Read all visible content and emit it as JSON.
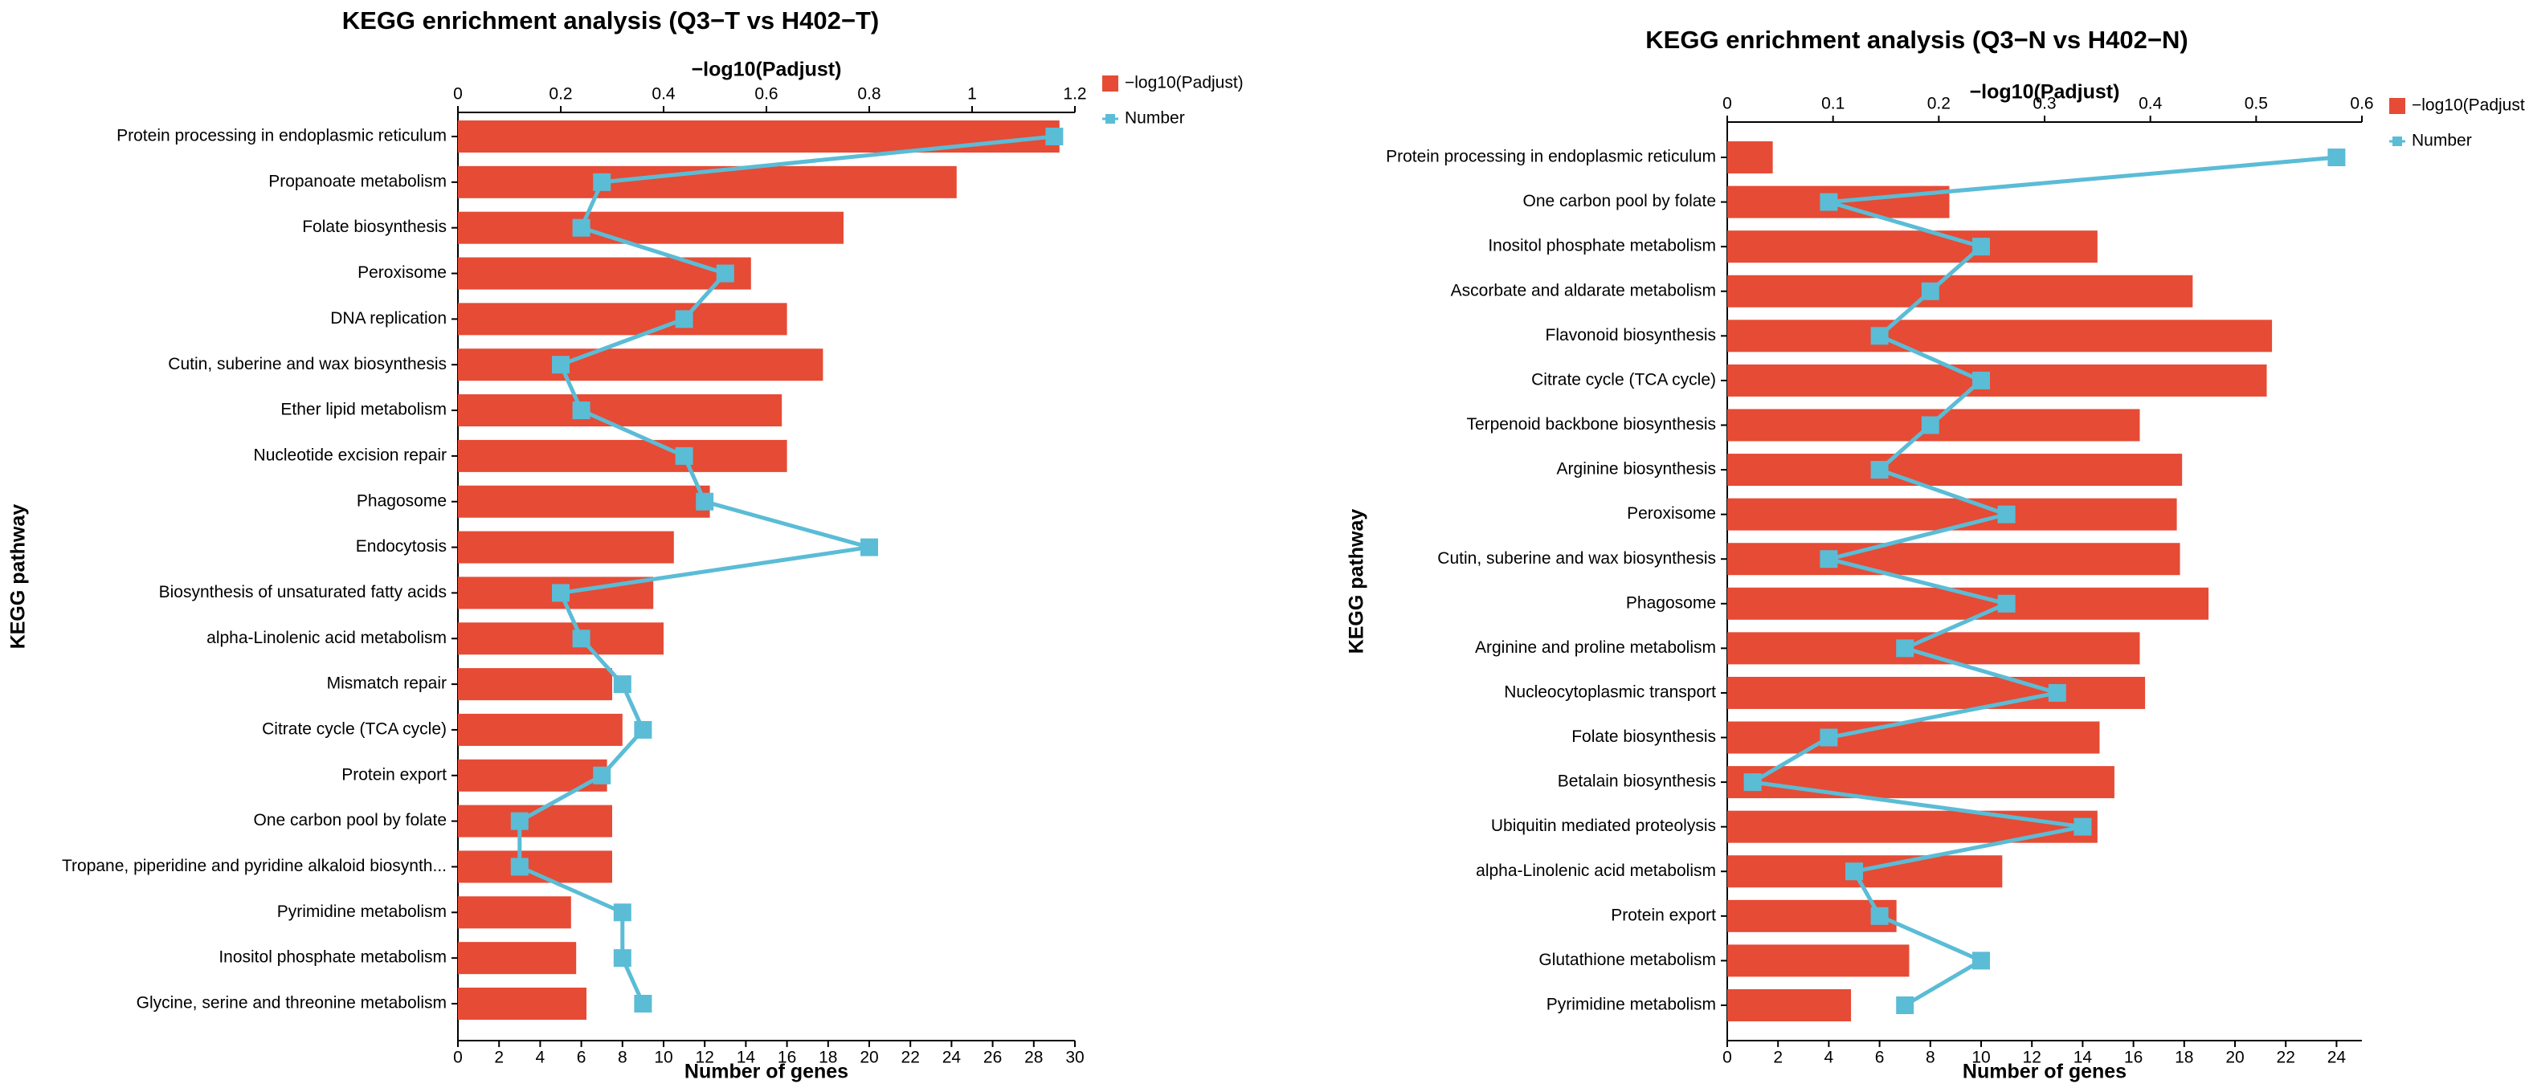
{
  "chart_data": [
    {
      "type": "bar-line",
      "title": "KEGG enrichment analysis (Q3−T vs H402−T)",
      "y_label": "KEGG pathway",
      "x_label": "Number of genes",
      "x2_label": "−log10(Padjust)",
      "categories": [
        "Protein processing in endoplasmic reticulum",
        "Propanoate metabolism",
        "Folate biosynthesis",
        "Peroxisome",
        "DNA replication",
        "Cutin, suberine and wax biosynthesis",
        "Ether lipid metabolism",
        "Nucleotide excision repair",
        "Phagosome",
        "Endocytosis",
        "Biosynthesis of unsaturated fatty acids",
        "alpha-Linolenic acid metabolism",
        "Mismatch repair",
        "Citrate cycle (TCA cycle)",
        "Protein export",
        "One carbon pool by folate",
        "Tropane, piperidine and pyridine alkaloid biosynth...",
        "Pyrimidine metabolism",
        "Inositol phosphate metabolism",
        "Glycine, serine and threonine metabolism"
      ],
      "series": [
        {
          "name": "−log10(Padjust)",
          "color": "#e64b35",
          "axis": "x2",
          "values": [
            1.17,
            0.97,
            0.75,
            0.57,
            0.64,
            0.71,
            0.63,
            0.64,
            0.49,
            0.42,
            0.38,
            0.4,
            0.3,
            0.32,
            0.29,
            0.3,
            0.3,
            0.22,
            0.23,
            0.25
          ]
        },
        {
          "name": "Number",
          "color": "#5bbcd6",
          "axis": "x",
          "values": [
            29,
            7,
            6,
            13,
            11,
            5,
            6,
            11,
            12,
            20,
            5,
            6,
            8,
            9,
            7,
            3,
            3,
            8,
            8,
            9
          ]
        }
      ],
      "xlim": [
        0,
        30
      ],
      "xticks": [
        0,
        2,
        4,
        6,
        8,
        10,
        12,
        14,
        16,
        18,
        20,
        22,
        24,
        26,
        28,
        30
      ],
      "x2lim": [
        0,
        1.2
      ],
      "x2ticks": [
        0,
        0.2,
        0.4,
        0.6,
        0.8,
        1,
        1.2
      ]
    },
    {
      "type": "bar-line",
      "title": "KEGG enrichment analysis (Q3−N vs H402−N)",
      "y_label": "KEGG pathway",
      "x_label": "Number of genes",
      "x2_label": "−log10(Padjust)",
      "categories": [
        "Protein processing in endoplasmic reticulum",
        "One carbon pool by folate",
        "Inositol phosphate metabolism",
        "Ascorbate and aldarate metabolism",
        "Flavonoid biosynthesis",
        "Citrate cycle (TCA cycle)",
        "Terpenoid backbone biosynthesis",
        "Arginine biosynthesis",
        "Peroxisome",
        "Cutin, suberine and wax biosynthesis",
        "Phagosome",
        "Arginine and proline metabolism",
        "Nucleocytoplasmic transport",
        "Folate biosynthesis",
        "Betalain biosynthesis",
        "Ubiquitin mediated proteolysis",
        "alpha-Linolenic acid metabolism",
        "Protein export",
        "Glutathione metabolism",
        "Pyrimidine metabolism"
      ],
      "series": [
        {
          "name": "−log10(Padjust)",
          "color": "#e64b35",
          "axis": "x2",
          "values": [
            0.043,
            0.21,
            0.35,
            0.44,
            0.515,
            0.51,
            0.39,
            0.43,
            0.425,
            0.428,
            0.455,
            0.39,
            0.395,
            0.352,
            0.366,
            0.35,
            0.26,
            0.16,
            0.172,
            0.117
          ]
        },
        {
          "name": "Number",
          "color": "#5bbcd6",
          "axis": "x",
          "values": [
            24,
            4,
            10,
            8,
            6,
            10,
            8,
            6,
            11,
            4,
            11,
            7,
            13,
            4,
            1,
            14,
            5,
            6,
            10,
            7
          ]
        }
      ],
      "xlim": [
        0,
        25
      ],
      "xticks": [
        0,
        2,
        4,
        6,
        8,
        10,
        12,
        14,
        16,
        18,
        20,
        22,
        24
      ],
      "x2lim": [
        0,
        0.6
      ],
      "x2ticks": [
        0,
        0.1,
        0.2,
        0.3,
        0.4,
        0.5,
        0.6
      ]
    }
  ]
}
